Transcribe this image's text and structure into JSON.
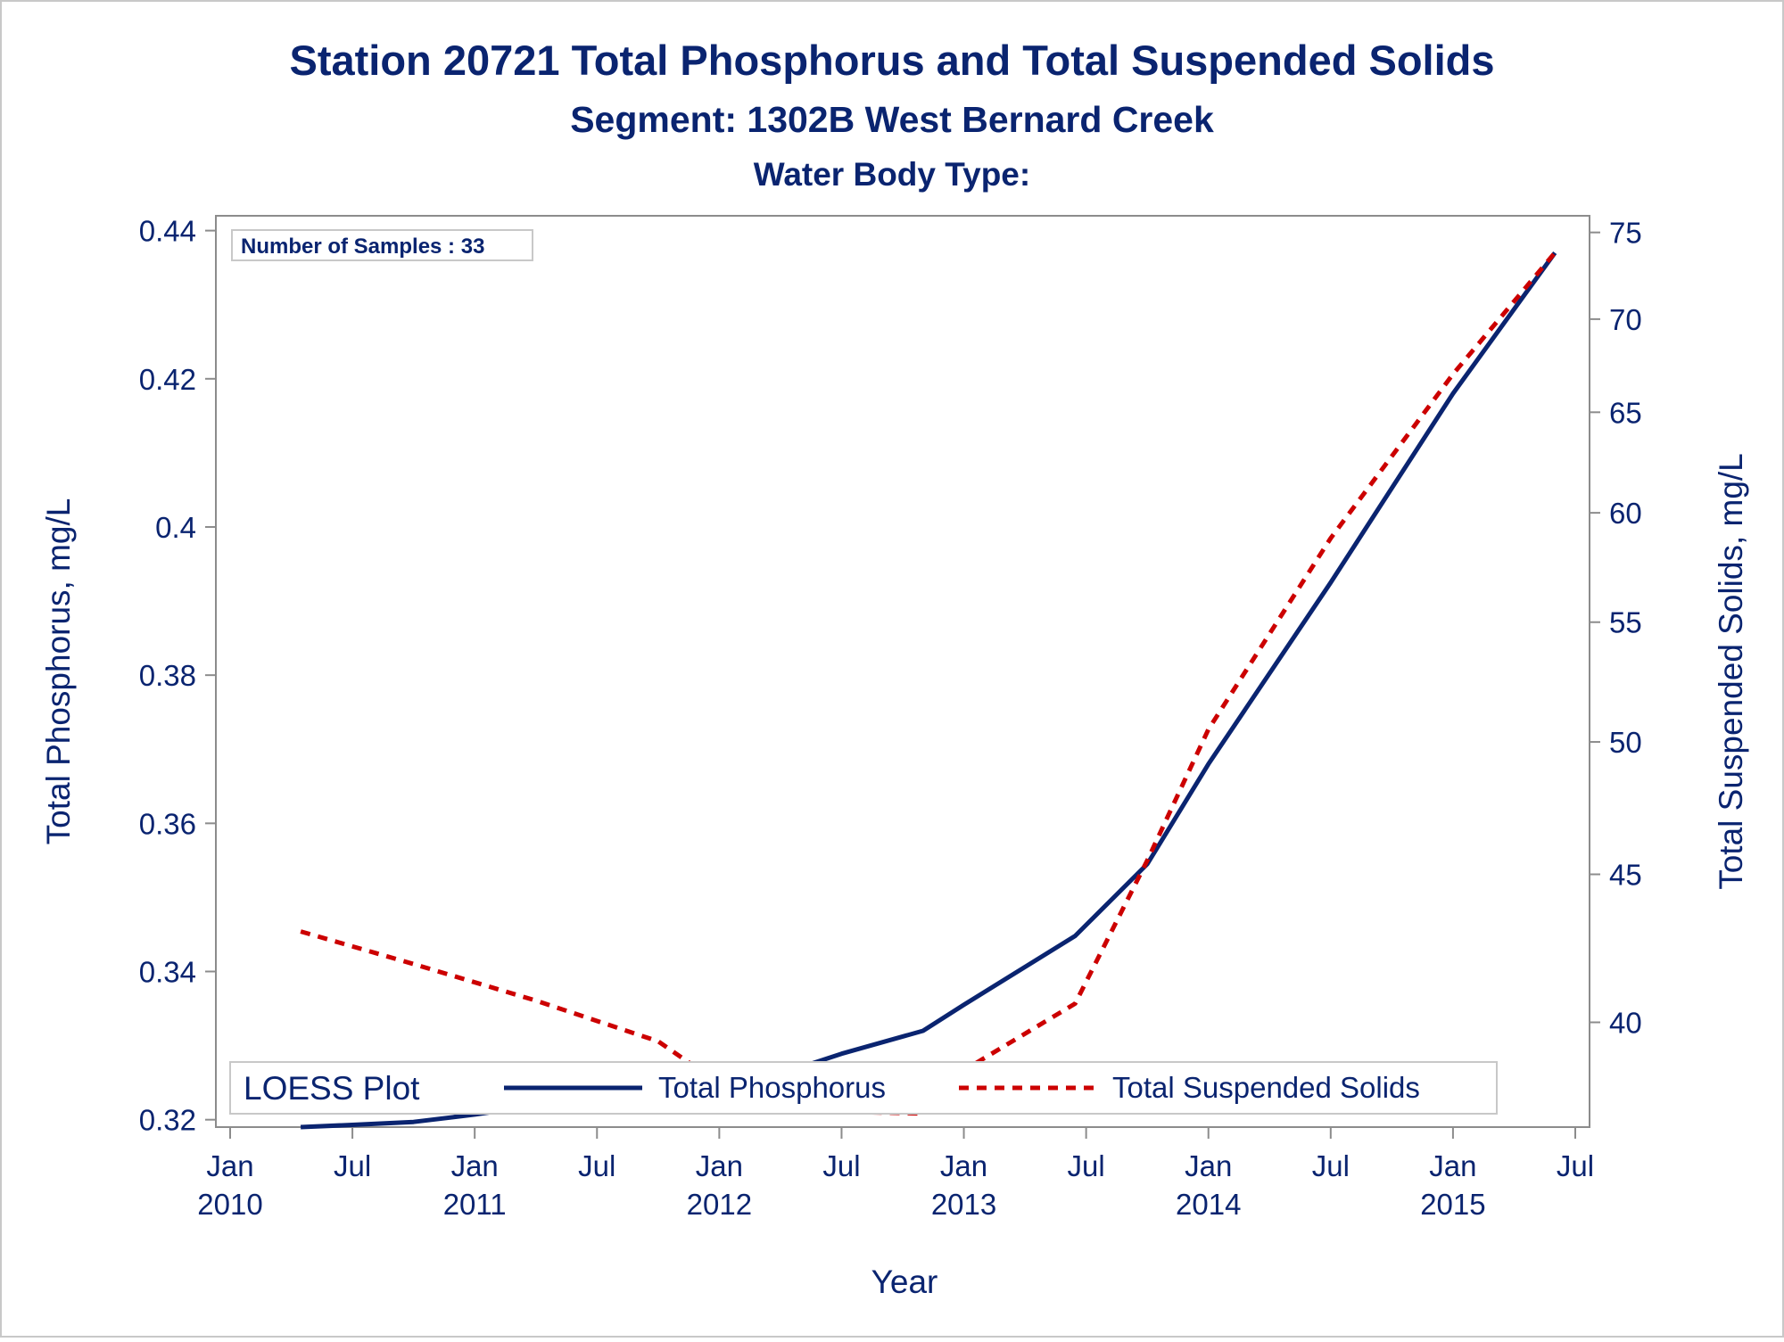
{
  "chart_data": {
    "type": "line",
    "title": "Station 20721  Total Phosphorus and Total Suspended Solids",
    "subtitle": "Segment: 1302B  West Bernard Creek",
    "subtitle2": "Water Body Type:",
    "inset_label": "Number of Samples : 33",
    "xlabel": "Year",
    "ylabel_left": "Total Phosphorus, mg/L",
    "ylabel_right": "Total Suspended Solids, mg/L",
    "x_ticks": [
      {
        "date": "2010-01",
        "line1": "Jan",
        "line2": "2010"
      },
      {
        "date": "2010-07",
        "line1": "Jul",
        "line2": ""
      },
      {
        "date": "2011-01",
        "line1": "Jan",
        "line2": "2011"
      },
      {
        "date": "2011-07",
        "line1": "Jul",
        "line2": ""
      },
      {
        "date": "2012-01",
        "line1": "Jan",
        "line2": "2012"
      },
      {
        "date": "2012-07",
        "line1": "Jul",
        "line2": ""
      },
      {
        "date": "2013-01",
        "line1": "Jan",
        "line2": "2013"
      },
      {
        "date": "2013-07",
        "line1": "Jul",
        "line2": ""
      },
      {
        "date": "2014-01",
        "line1": "Jan",
        "line2": "2014"
      },
      {
        "date": "2014-07",
        "line1": "Jul",
        "line2": ""
      },
      {
        "date": "2015-01",
        "line1": "Jan",
        "line2": "2015"
      },
      {
        "date": "2015-07",
        "line1": "Jul",
        "line2": ""
      }
    ],
    "y_left_ticks": [
      "0.32",
      "0.34",
      "0.36",
      "0.38",
      "0.4",
      "0.42",
      "0.44"
    ],
    "y_left_range": [
      0.319,
      0.442
    ],
    "y_right_ticks": [
      "40",
      "45",
      "50",
      "55",
      "60",
      "65",
      "70",
      "75"
    ],
    "y_right_range": [
      36.8,
      76.0
    ],
    "y_right_scale": "log",
    "legend": {
      "title": "LOESS Plot",
      "placement": "bottom-left inside plot",
      "entries": [
        "Total Phosphorus",
        "Total Suspended Solids"
      ]
    },
    "series": [
      {
        "name": "Total Phosphorus",
        "axis": "left",
        "color": "#0a2470",
        "style": "solid",
        "points": [
          [
            "2010-04-15",
            0.319
          ],
          [
            "2010-07-01",
            0.3193
          ],
          [
            "2010-10-01",
            0.3197
          ],
          [
            "2011-01-01",
            0.3207
          ],
          [
            "2011-04-01",
            0.3219
          ],
          [
            "2011-07-01",
            0.3235
          ],
          [
            "2011-10-01",
            0.3245
          ],
          [
            "2012-01-01",
            0.3255
          ],
          [
            "2012-04-01",
            0.3262
          ],
          [
            "2012-07-01",
            0.3289
          ],
          [
            "2012-11-01",
            0.332
          ],
          [
            "2013-01-01",
            0.3355
          ],
          [
            "2013-06-15",
            0.3448
          ],
          [
            "2013-10-01",
            0.3545
          ],
          [
            "2014-01-01",
            0.368
          ],
          [
            "2014-07-01",
            0.3925
          ],
          [
            "2015-01-01",
            0.418
          ],
          [
            "2015-06-01",
            0.437
          ]
        ]
      },
      {
        "name": "Total Suspended Solids",
        "axis": "right",
        "color": "#cc0000",
        "style": "dashed",
        "points": [
          [
            "2010-04-15",
            43.0
          ],
          [
            "2010-10-01",
            41.9
          ],
          [
            "2011-04-01",
            40.7
          ],
          [
            "2011-10-01",
            39.4
          ],
          [
            "2012-01-01",
            38.1
          ],
          [
            "2012-04-01",
            37.3
          ],
          [
            "2012-11-01",
            37.2
          ],
          [
            "2013-01-01",
            38.5
          ],
          [
            "2013-06-15",
            40.6
          ],
          [
            "2013-10-01",
            45.5
          ],
          [
            "2014-01-01",
            50.5
          ],
          [
            "2014-07-01",
            58.8
          ],
          [
            "2015-01-01",
            67.0
          ],
          [
            "2015-06-01",
            73.8
          ]
        ]
      }
    ]
  }
}
